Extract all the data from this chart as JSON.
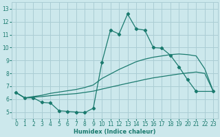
{
  "xlabel": "Humidex (Indice chaleur)",
  "background_color": "#cce8ec",
  "grid_color": "#aacdd4",
  "line_color": "#1a7a6e",
  "xlim": [
    -0.5,
    23.5
  ],
  "ylim": [
    4.5,
    13.5
  ],
  "xticks": [
    0,
    1,
    2,
    3,
    4,
    5,
    6,
    7,
    8,
    9,
    10,
    11,
    12,
    13,
    14,
    15,
    16,
    17,
    18,
    19,
    20,
    21,
    22,
    23
  ],
  "yticks": [
    5,
    6,
    7,
    8,
    9,
    10,
    11,
    12,
    13
  ],
  "line1_x": [
    0,
    1,
    2,
    3,
    4,
    5,
    6,
    7,
    8,
    9,
    10,
    11,
    12,
    13,
    14,
    15,
    16,
    17,
    18,
    19,
    20,
    21,
    23
  ],
  "line1_y": [
    6.5,
    6.1,
    6.1,
    5.75,
    5.7,
    5.1,
    5.05,
    5.0,
    4.95,
    5.3,
    8.85,
    11.35,
    11.05,
    12.6,
    11.45,
    11.35,
    10.0,
    9.95,
    9.4,
    8.5,
    7.5,
    6.6,
    6.6
  ],
  "line2_x": [
    0,
    1,
    2,
    3,
    4,
    5,
    6,
    7,
    8,
    9,
    10,
    11,
    12,
    13,
    14,
    15,
    16,
    17,
    18,
    19,
    20,
    21,
    22,
    23
  ],
  "line2_y": [
    6.5,
    6.1,
    6.2,
    6.3,
    6.45,
    6.55,
    6.65,
    6.75,
    6.9,
    7.1,
    7.6,
    7.95,
    8.3,
    8.6,
    8.9,
    9.1,
    9.25,
    9.35,
    9.45,
    9.5,
    9.45,
    9.35,
    8.35,
    6.6
  ],
  "line3_x": [
    0,
    1,
    2,
    3,
    4,
    5,
    6,
    7,
    8,
    9,
    10,
    11,
    12,
    13,
    14,
    15,
    16,
    17,
    18,
    19,
    20,
    21,
    22,
    23
  ],
  "line3_y": [
    6.5,
    6.1,
    6.15,
    6.2,
    6.27,
    6.33,
    6.38,
    6.43,
    6.52,
    6.62,
    6.78,
    6.93,
    7.08,
    7.23,
    7.37,
    7.52,
    7.65,
    7.75,
    7.85,
    7.95,
    8.03,
    8.1,
    8.0,
    6.6
  ]
}
